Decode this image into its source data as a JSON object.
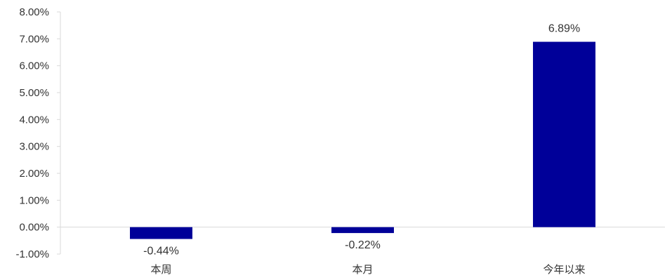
{
  "chart_data": {
    "type": "bar",
    "categories": [
      "本周",
      "本月",
      "今年以来"
    ],
    "values": [
      -0.44,
      -0.22,
      6.89
    ],
    "data_labels": [
      "-0.44%",
      "-0.22%",
      "6.89%"
    ],
    "y_ticks": [
      "8.00%",
      "7.00%",
      "6.00%",
      "5.00%",
      "4.00%",
      "3.00%",
      "2.00%",
      "1.00%",
      "0.00%",
      "-1.00%"
    ],
    "ylim": [
      -1,
      8
    ],
    "tick_step": 1,
    "grid": false,
    "legend": "none",
    "bar_color": "#000099",
    "axis_color": "#d9d9d9"
  }
}
